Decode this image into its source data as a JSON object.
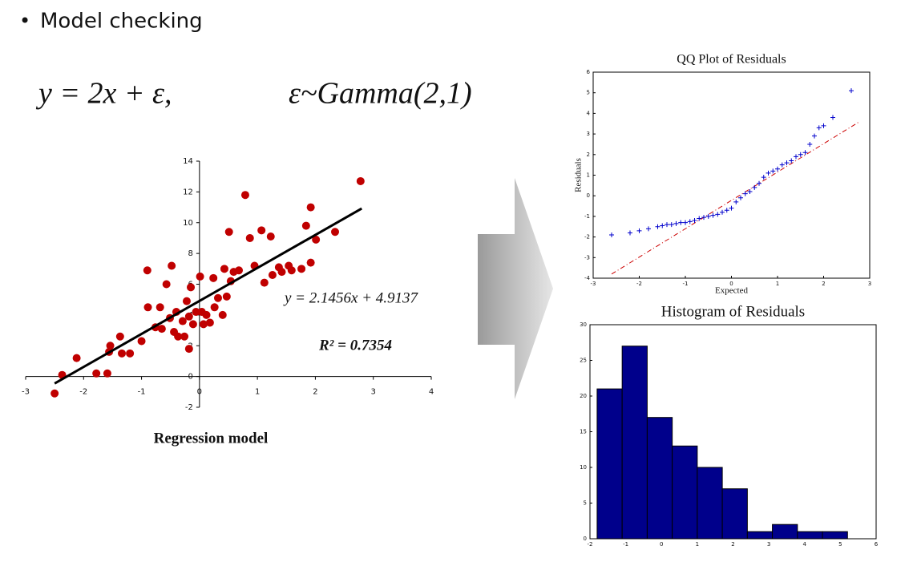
{
  "bullet": "Model checking",
  "equation": [
    "y = 2x + ε,",
    "ε~Gamma(2,1)"
  ],
  "chart_data": [
    {
      "type": "scatter",
      "xlabel": "Regression model",
      "color": "#c00000",
      "axes_cross_zero": true,
      "annotations": [
        "y = 2.1456x + 4.9137",
        "R² = 0.7354"
      ],
      "trendline": {
        "x": [
          -2.5,
          2.8
        ],
        "y": [
          -0.45,
          10.92
        ],
        "color": "#000000"
      },
      "x": [
        -2.5,
        -2.37,
        -2.12,
        -1.78,
        -1.59,
        -1.54,
        -1.56,
        -1.37,
        -1.34,
        -1.2,
        -1.0,
        -0.89,
        -0.9,
        -0.76,
        -0.68,
        -0.65,
        -0.57,
        -0.51,
        -0.48,
        -0.44,
        -0.4,
        -0.37,
        -0.29,
        -0.22,
        -0.18,
        -0.15,
        -0.11,
        -0.06,
        0.01,
        0.04,
        0.07,
        0.12,
        0.18,
        0.24,
        0.26,
        0.32,
        0.4,
        0.43,
        0.47,
        0.51,
        0.54,
        0.59,
        0.68,
        0.79,
        0.87,
        0.95,
        1.07,
        1.12,
        1.23,
        1.26,
        1.37,
        1.42,
        1.54,
        1.59,
        1.76,
        1.84,
        1.92,
        1.92,
        2.01,
        2.34,
        2.78,
        -0.18,
        -0.26
      ],
      "y": [
        -1.1,
        0.1,
        1.2,
        0.2,
        0.2,
        2.0,
        1.6,
        2.6,
        1.5,
        1.5,
        2.3,
        4.5,
        6.9,
        3.2,
        4.5,
        3.1,
        6.0,
        3.8,
        7.2,
        2.9,
        4.2,
        2.6,
        3.6,
        4.9,
        3.9,
        5.8,
        3.4,
        4.2,
        6.5,
        4.2,
        3.4,
        4.0,
        3.5,
        6.4,
        4.5,
        5.1,
        4.0,
        7.0,
        5.2,
        9.4,
        6.2,
        6.8,
        6.9,
        11.8,
        9.0,
        7.2,
        9.5,
        6.1,
        9.1,
        6.6,
        7.1,
        6.8,
        7.2,
        6.9,
        7.0,
        9.8,
        11.0,
        7.4,
        8.9,
        9.4,
        12.7,
        1.8,
        2.6
      ],
      "xlim": [
        -3,
        4
      ],
      "ylim": [
        -2,
        14
      ],
      "xticks": [
        -3,
        -2,
        -1,
        0,
        1,
        2,
        3,
        4
      ],
      "yticks": [
        -2,
        0,
        2,
        4,
        6,
        8,
        10,
        12,
        14
      ]
    },
    {
      "type": "scatter",
      "title": "QQ Plot of Residuals",
      "xlabel": "Expected",
      "ylabel": "Residuals",
      "color": "#0000cc",
      "marker": "+",
      "box": true,
      "reference_line": {
        "x": [
          -2.6,
          2.78
        ],
        "y": [
          -3.8,
          3.6
        ],
        "color": "#cc0000"
      },
      "x": [
        -2.6,
        -2.2,
        -2.0,
        -1.8,
        -1.6,
        -1.5,
        -1.4,
        -1.3,
        -1.2,
        -1.1,
        -1.0,
        -0.9,
        -0.8,
        -0.7,
        -0.6,
        -0.5,
        -0.4,
        -0.3,
        -0.2,
        -0.1,
        0,
        0.1,
        0.2,
        0.3,
        0.4,
        0.5,
        0.6,
        0.7,
        0.8,
        0.9,
        1.0,
        1.1,
        1.2,
        1.3,
        1.4,
        1.5,
        1.6,
        1.7,
        1.8,
        1.9,
        2.0,
        2.2,
        2.6
      ],
      "y": [
        -1.9,
        -1.8,
        -1.7,
        -1.6,
        -1.5,
        -1.45,
        -1.4,
        -1.4,
        -1.35,
        -1.3,
        -1.3,
        -1.25,
        -1.2,
        -1.1,
        -1.05,
        -1.0,
        -0.95,
        -0.9,
        -0.8,
        -0.7,
        -0.6,
        -0.3,
        -0.1,
        0.1,
        0.2,
        0.4,
        0.6,
        0.9,
        1.1,
        1.2,
        1.3,
        1.5,
        1.6,
        1.7,
        1.9,
        2.0,
        2.1,
        2.5,
        2.9,
        3.3,
        3.4,
        3.8,
        5.1
      ],
      "xlim": [
        -3,
        3
      ],
      "ylim": [
        -4,
        6
      ],
      "xticks": [
        -3,
        -2,
        -1,
        0,
        1,
        2,
        3
      ],
      "yticks": [
        -4,
        -3,
        -2,
        -1,
        0,
        1,
        2,
        3,
        4,
        5,
        6
      ]
    },
    {
      "type": "histogram",
      "title": "Histogram of Residuals",
      "color": "#00008b",
      "box": true,
      "bins": [
        -1.8,
        -1.1,
        -0.4,
        0.3,
        1.0,
        1.7,
        2.4,
        3.1,
        3.8,
        4.5,
        5.2
      ],
      "counts": [
        21,
        27,
        17,
        13,
        10,
        7,
        1,
        2,
        1,
        1
      ],
      "xlim": [
        -2,
        6
      ],
      "ylim": [
        0,
        30
      ],
      "xticks": [
        -2,
        -1,
        0,
        1,
        2,
        3,
        4,
        5,
        6
      ],
      "yticks": [
        0,
        5,
        10,
        15,
        20,
        25,
        30
      ]
    }
  ]
}
